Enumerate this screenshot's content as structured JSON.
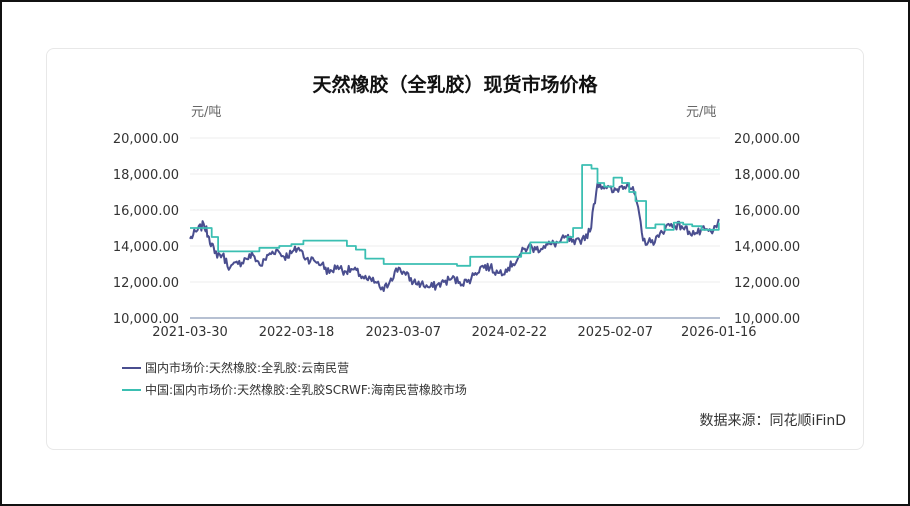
{
  "chart_data": {
    "type": "line",
    "title": "天然橡胶（全乳胶）现货市场价格",
    "y_unit_left": "元/吨",
    "y_unit_right": "元/吨",
    "ylim": [
      10000,
      20000
    ],
    "y_ticks": [
      "20,000.00",
      "18,000.00",
      "16,000.00",
      "14,000.00",
      "12,000.00",
      "10,000.00"
    ],
    "y_tick_values": [
      20000,
      18000,
      16000,
      14000,
      12000,
      10000
    ],
    "x_ticks": [
      "2021-03-30",
      "2022-03-18",
      "2023-03-07",
      "2024-02-22",
      "2025-02-07",
      "2026-01-16"
    ],
    "x_range": [
      "2021-03-30",
      "2026-01-20"
    ],
    "grid": true,
    "legend_position": "bottom-left",
    "series": [
      {
        "name": "国内市场价:天然橡胶:全乳胶:云南民营",
        "color": "#4a4e8f",
        "x": [
          "2021-03-30",
          "2021-04-20",
          "2021-05-15",
          "2021-06-01",
          "2021-06-20",
          "2021-07-15",
          "2021-08-10",
          "2021-09-05",
          "2021-10-01",
          "2021-10-25",
          "2021-11-20",
          "2021-12-15",
          "2022-01-10",
          "2022-02-05",
          "2022-03-01",
          "2022-03-25",
          "2022-04-20",
          "2022-05-15",
          "2022-06-10",
          "2022-07-05",
          "2022-08-01",
          "2022-08-25",
          "2022-09-20",
          "2022-10-15",
          "2022-11-10",
          "2022-12-05",
          "2023-01-01",
          "2023-01-25",
          "2023-02-20",
          "2023-03-15",
          "2023-04-10",
          "2023-05-05",
          "2023-06-01",
          "2023-06-25",
          "2023-07-20",
          "2023-08-15",
          "2023-09-10",
          "2023-10-05",
          "2023-11-01",
          "2023-11-25",
          "2023-12-20",
          "2024-01-15",
          "2024-02-10",
          "2024-03-05",
          "2024-04-01",
          "2024-04-25",
          "2024-05-20",
          "2024-06-15",
          "2024-07-10",
          "2024-08-05",
          "2024-08-30",
          "2024-09-25",
          "2024-10-20",
          "2024-11-15",
          "2024-12-10",
          "2025-01-05",
          "2025-02-01",
          "2025-02-25",
          "2025-03-20",
          "2025-04-15",
          "2025-05-10",
          "2025-06-05",
          "2025-07-01",
          "2025-07-25",
          "2025-08-20",
          "2025-09-15",
          "2025-10-10",
          "2025-11-05",
          "2025-12-01",
          "2025-12-25",
          "2026-01-16"
        ],
        "values": [
          14400,
          14800,
          15200,
          14500,
          13600,
          13500,
          12800,
          13000,
          13300,
          13500,
          12900,
          13500,
          13800,
          13400,
          13600,
          13900,
          13300,
          13200,
          13000,
          12500,
          12900,
          12600,
          12700,
          12400,
          12100,
          12000,
          11500,
          12200,
          12800,
          12400,
          12000,
          11900,
          11700,
          11800,
          12000,
          12200,
          12000,
          12000,
          12500,
          12900,
          12800,
          12500,
          12700,
          13000,
          13600,
          14000,
          13800,
          14000,
          14100,
          14200,
          14500,
          14100,
          14400,
          14800,
          17500,
          17300,
          17000,
          17300,
          17500,
          16800,
          14300,
          14200,
          14500,
          15100,
          15200,
          15100,
          14800,
          14700,
          14900,
          14700,
          15500
        ]
      },
      {
        "name": "中国:国内市场价:天然橡胶:全乳胶SCRWF:海南民营橡胶市场",
        "color": "#3bbfb2",
        "x": [
          "2021-03-30",
          "2021-05-10",
          "2021-06-10",
          "2021-07-01",
          "2021-09-01",
          "2021-10-01",
          "2021-11-15",
          "2022-01-20",
          "2022-03-01",
          "2022-04-10",
          "2022-06-01",
          "2022-07-01",
          "2022-08-01",
          "2022-09-01",
          "2022-10-01",
          "2022-11-01",
          "2023-01-01",
          "2023-03-01",
          "2023-05-01",
          "2023-07-01",
          "2023-09-01",
          "2023-10-15",
          "2023-12-01",
          "2024-02-01",
          "2024-04-01",
          "2024-05-01",
          "2024-06-20",
          "2024-08-01",
          "2024-09-01",
          "2024-09-20",
          "2024-10-20",
          "2024-11-20",
          "2024-12-10",
          "2025-01-01",
          "2025-02-01",
          "2025-03-01",
          "2025-03-25",
          "2025-04-15",
          "2025-05-20",
          "2025-06-20",
          "2025-07-20",
          "2025-08-20",
          "2025-09-20",
          "2025-10-20",
          "2025-11-20",
          "2025-12-20",
          "2026-01-16"
        ],
        "values": [
          15000,
          15000,
          14500,
          13700,
          13700,
          13700,
          13900,
          14000,
          14100,
          14300,
          14300,
          14300,
          14300,
          14000,
          13800,
          13300,
          13000,
          13000,
          13000,
          13000,
          12900,
          13400,
          13400,
          13400,
          13600,
          14200,
          14200,
          14200,
          14500,
          15000,
          18500,
          18300,
          17500,
          17300,
          17800,
          17500,
          17000,
          16500,
          15000,
          15200,
          14900,
          15300,
          15200,
          15100,
          14900,
          14900,
          15300
        ]
      }
    ]
  },
  "source_text": "数据来源：同花顺iFinD"
}
